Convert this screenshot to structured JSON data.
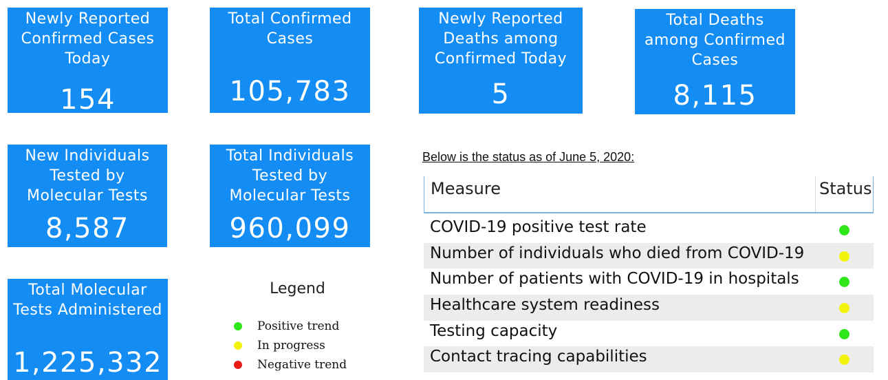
{
  "cards": [
    {
      "id": "c1",
      "label": "Newly Reported Confirmed Cases Today",
      "value": "154"
    },
    {
      "id": "c2",
      "label": "Total Confirmed Cases",
      "value": "105,783"
    },
    {
      "id": "c3",
      "label": "Newly Reported Deaths among Confirmed Today",
      "value": "5"
    },
    {
      "id": "c4",
      "label": "Total Deaths among Confirmed Cases",
      "value": "8,115"
    },
    {
      "id": "c5",
      "label": "New Individuals Tested by Molecular Tests",
      "value": "8,587"
    },
    {
      "id": "c6",
      "label": "Total Individuals Tested by Molecular Tests",
      "value": "960,099"
    },
    {
      "id": "c7",
      "label": "Total Molecular Tests Administered",
      "value": "1,225,332"
    }
  ],
  "legend": {
    "title": "Legend",
    "items": [
      {
        "label": "Positive trend",
        "color": "#2ee61a"
      },
      {
        "label": "In progress",
        "color": "#f2f20a"
      },
      {
        "label": "Negative trend",
        "color": "#e81a1a"
      }
    ]
  },
  "status_note": "Below is the status as of June 5, 2020:",
  "table": {
    "headers": {
      "measure": "Measure",
      "status": "Status"
    },
    "rows": [
      {
        "measure": "COVID-19 positive test rate",
        "status": "positive",
        "color": "#2ee61a"
      },
      {
        "measure": "Number of individuals who died from COVID-19",
        "status": "in-progress",
        "color": "#f2f20a"
      },
      {
        "measure": "Number of patients with COVID-19 in hospitals",
        "status": "positive",
        "color": "#2ee61a"
      },
      {
        "measure": "Healthcare system readiness",
        "status": "in-progress",
        "color": "#f2f20a"
      },
      {
        "measure": "Testing capacity",
        "status": "positive",
        "color": "#2ee61a"
      },
      {
        "measure": "Contact tracing capabilities",
        "status": "in-progress",
        "color": "#f2f20a"
      }
    ]
  }
}
